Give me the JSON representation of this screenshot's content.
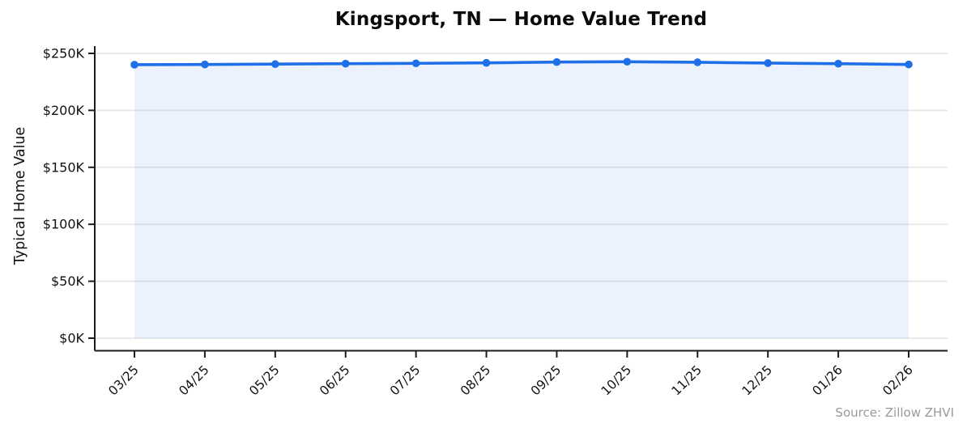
{
  "chart_data": {
    "type": "line",
    "title": "Kingsport, TN — Home Value Trend",
    "ylabel": "Typical Home Value",
    "xlabel": "",
    "unit": "USD thousands",
    "categories": [
      "03/25",
      "04/25",
      "05/25",
      "06/25",
      "07/25",
      "08/25",
      "09/25",
      "10/25",
      "11/25",
      "12/25",
      "01/26",
      "02/26"
    ],
    "series": [
      {
        "name": "Typical Home Value",
        "values": [
          240.1,
          240.3,
          240.6,
          241.0,
          241.3,
          241.7,
          242.4,
          242.7,
          242.2,
          241.5,
          241.0,
          240.3
        ]
      }
    ],
    "ylim": [
      0,
      250
    ],
    "ytick_values": [
      0,
      50,
      100,
      150,
      200,
      250
    ],
    "ytick_labels": [
      "$0K",
      "$50K",
      "$100K",
      "$150K",
      "$200K",
      "$250K"
    ],
    "grid": "horizontal",
    "legend": "none",
    "marker": "circle",
    "area_fill": true,
    "source_note": "Source: Zillow ZHVI",
    "colors": {
      "line": "#1f6fe8",
      "marker": "#1f6fe8",
      "fill": "#1f6fe8",
      "fill_opacity": 0.09,
      "grid": "#e6e6e6",
      "axis": "#1c1c1c",
      "tick_label": "#111111",
      "title": "#0a0a0a",
      "source": "#999999"
    }
  }
}
